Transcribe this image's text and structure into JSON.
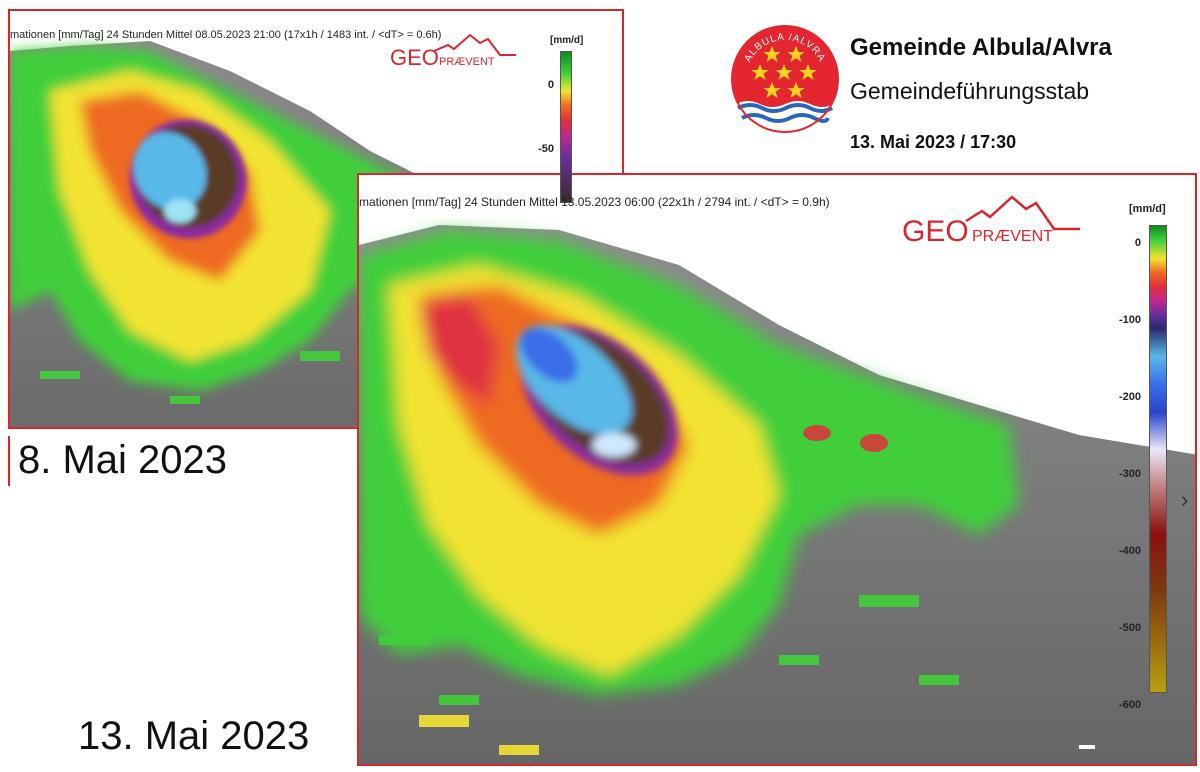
{
  "panel_old": {
    "header": "mationen [mm/Tag] 24 Stunden Mittel 08.05.2023 21:00 (17x1h / 1483 int. / <dT> = 0.6h)",
    "logo_geo": "GEO",
    "logo_praevent": "PRÆVENT",
    "scale_unit": "[mm/d]",
    "scale_ticks": [
      "0",
      "-50"
    ],
    "date_label": "8. Mai 2023"
  },
  "panel_new": {
    "header": "mationen [mm/Tag] 24 Stunden Mittel 13.05.2023 06:00 (22x1h / 2794 int. / <dT> = 0.9h)",
    "logo_geo": "GEO",
    "logo_praevent": "PRÆVENT",
    "scale_unit": "[mm/d]",
    "scale_ticks": [
      "0",
      "-100",
      "-200",
      "-300",
      "-400",
      "-500",
      "-600"
    ],
    "date_label": "13. Mai 2023"
  },
  "municipality": {
    "crest_text": "ALBULA /ALVRA",
    "name": "Gemeinde Albula/Alvra",
    "subtitle": "Gemeindeführungsstab",
    "datetime": "13. Mai 2023 / 17:30"
  },
  "colors": {
    "frame": "#d8262e",
    "crest_red": "#e3262f",
    "crest_star": "#ffd21f",
    "water_blue": "#2a66b8"
  },
  "icons": {
    "next": "chevron-right-icon",
    "logo_mountain": "mountain-outline-icon"
  }
}
